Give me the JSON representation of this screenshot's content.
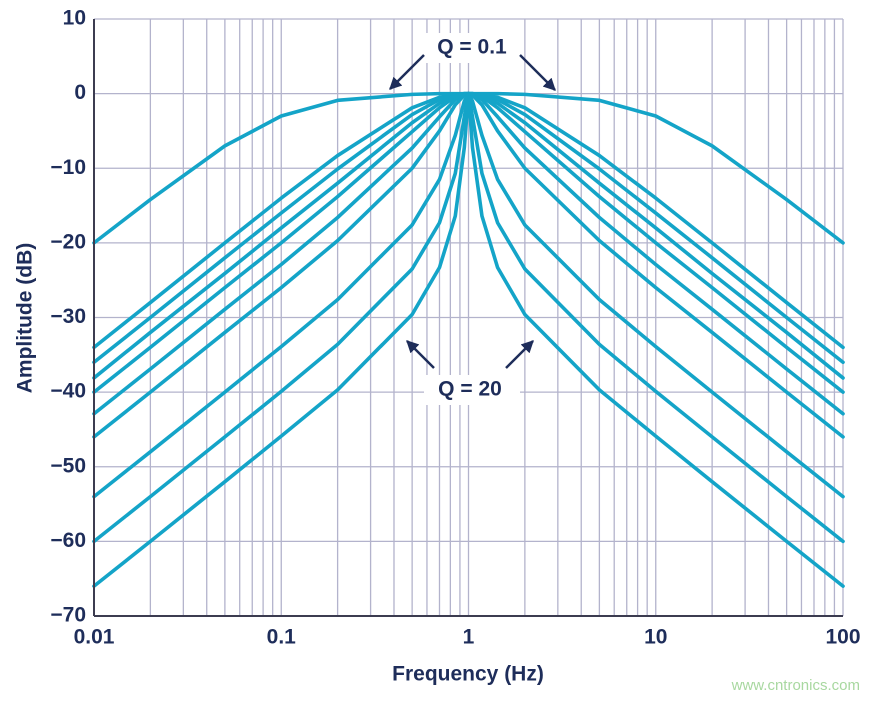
{
  "chart_data": {
    "type": "line",
    "xlabel": "Frequency (Hz)",
    "ylabel": "Amplitude (dB)",
    "log_x": true,
    "grid": true,
    "xlim": [
      0.01,
      100
    ],
    "xticks": [
      0.01,
      0.1,
      1,
      10,
      100
    ],
    "xminorticks": [
      0.02,
      0.03,
      0.04,
      0.05,
      0.06,
      0.07,
      0.08,
      0.09,
      0.2,
      0.3,
      0.4,
      0.5,
      0.6,
      0.7,
      0.8,
      0.9,
      2,
      3,
      4,
      5,
      6,
      7,
      8,
      9,
      20,
      30,
      40,
      50,
      60,
      70,
      80,
      90
    ],
    "ylim": [
      -70,
      10
    ],
    "yticks": [
      10,
      0,
      {
        "value": -10,
        "label": "−10"
      },
      {
        "value": -20,
        "label": "−20"
      },
      {
        "value": -30,
        "label": "−30"
      },
      {
        "value": -40,
        "label": "−40"
      },
      {
        "value": -50,
        "label": "−50"
      },
      {
        "value": -60,
        "label": "−60"
      },
      {
        "value": -70,
        "label": "−70"
      }
    ],
    "color": "#14a4c8",
    "x": [
      0.01,
      0.02,
      0.05,
      0.1,
      0.2,
      0.5,
      0.7,
      0.85,
      0.95,
      1,
      1.05,
      1.18,
      1.43,
      2,
      5,
      10,
      20,
      50,
      100
    ],
    "series": [
      {
        "values": [
          -20,
          -14.2,
          -7,
          -3,
          -0.9,
          -0.1,
          0,
          0,
          0,
          0,
          0,
          0,
          0,
          -0.1,
          -0.9,
          -3,
          -7,
          -14.2,
          -20
        ]
      },
      {
        "values": [
          -34,
          -28,
          -20,
          -14,
          -8.3,
          -1.9,
          -0.5,
          -0.1,
          0,
          0,
          0,
          -0.1,
          -0.5,
          -1.9,
          -8.3,
          -14,
          -20,
          -28,
          -34
        ]
      },
      {
        "values": [
          -36,
          -30,
          -22,
          -16,
          -10.1,
          -2.8,
          -0.8,
          -0.2,
          0,
          0,
          0,
          -0.2,
          -0.8,
          -2.8,
          -10.1,
          -16,
          -22,
          -30,
          -36
        ]
      },
      {
        "values": [
          -38.1,
          -32,
          -24.1,
          -18,
          -12,
          -3.9,
          -1.3,
          -0.3,
          0,
          0,
          0,
          -0.3,
          -1.3,
          -3.9,
          -12,
          -18,
          -24.1,
          -32,
          -38.1
        ]
      },
      {
        "values": [
          -40,
          -34,
          -26,
          -20,
          -13.8,
          -5.1,
          -1.9,
          -0.4,
          -0.1,
          0,
          -0.1,
          -0.4,
          -1.9,
          -5.1,
          -13.8,
          -20,
          -26,
          -34,
          -40
        ]
      },
      {
        "values": [
          -42.9,
          -36.9,
          -28.9,
          -22.9,
          -16.6,
          -7.3,
          -3.1,
          -0.8,
          -0.1,
          0,
          -0.1,
          -0.8,
          -3.1,
          -7.3,
          -16.6,
          -22.9,
          -28.9,
          -36.9,
          -42.9
        ]
      },
      {
        "values": [
          -46,
          -40,
          -32,
          -26,
          -19.7,
          -10,
          -5,
          -1.5,
          -0.2,
          0,
          -0.2,
          -1.5,
          -5,
          -10,
          -19.7,
          -26,
          -32,
          -40,
          -46
        ]
      },
      {
        "values": [
          -54,
          -48,
          -40,
          -33.9,
          -27.6,
          -17.6,
          -11.5,
          -5.6,
          -1,
          0,
          -1,
          -5.6,
          -11.5,
          -17.6,
          -27.6,
          -33.9,
          -40,
          -48,
          -54
        ]
      },
      {
        "values": [
          -60,
          -54,
          -46,
          -39.9,
          -33.6,
          -23.5,
          -17.3,
          -10.7,
          -3.1,
          0,
          -3.1,
          -10.7,
          -17.3,
          -23.5,
          -33.6,
          -39.9,
          -46,
          -54,
          -60
        ]
      },
      {
        "values": [
          -66,
          -60,
          -52,
          -45.9,
          -39.7,
          -29.6,
          -23.3,
          -16.4,
          -7.2,
          0,
          -7.2,
          -16.4,
          -23.3,
          -29.6,
          -39.7,
          -45.9,
          -52,
          -60,
          -66
        ]
      }
    ],
    "annotations": [
      "Q = 0.1",
      "Q = 20"
    ],
    "watermark": "www.cntronics.com"
  }
}
